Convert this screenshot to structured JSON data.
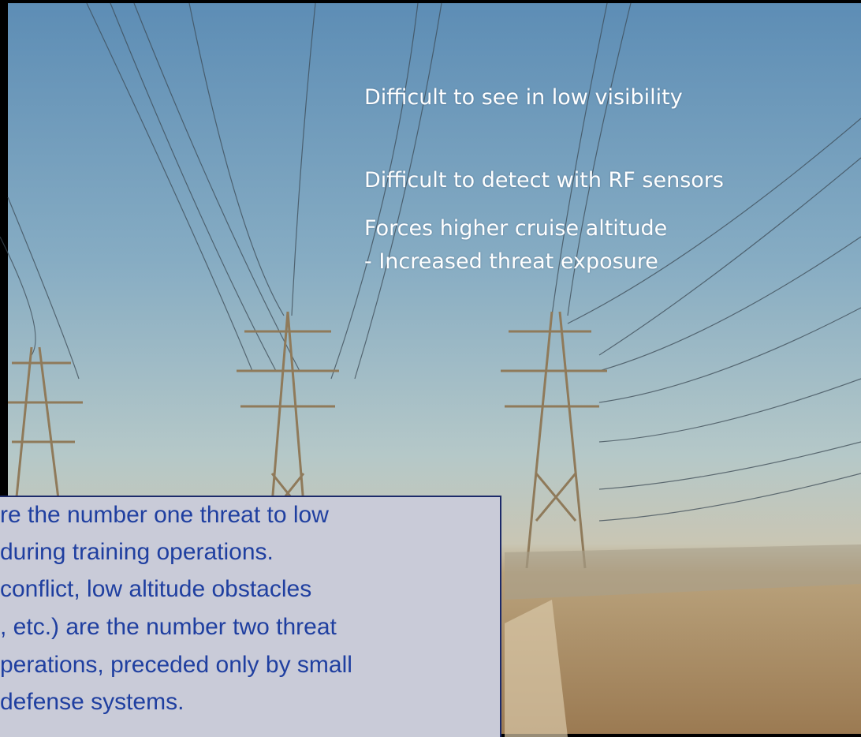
{
  "bullets": [
    "Difficult to see in low visibility",
    "Difficult to detect with RF sensors",
    "Forces higher cruise altitude",
    "- Increased threat exposure"
  ],
  "note": {
    "lines": [
      "re the number one threat to low",
      "during training operations.",
      "conflict, low altitude obstacles",
      ", etc.) are the number two threat",
      "perations, preceded only by small",
      "defense systems."
    ]
  }
}
